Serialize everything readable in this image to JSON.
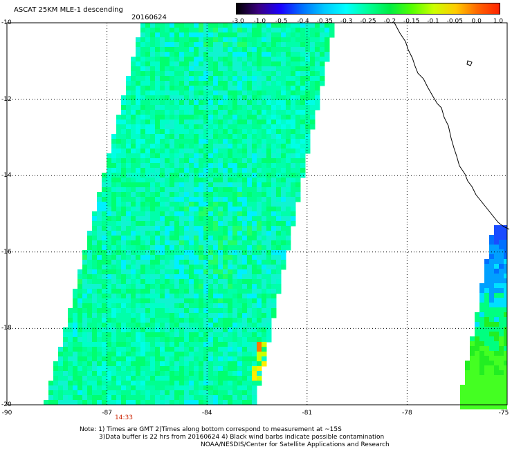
{
  "header": {
    "title": "ASCAT 25KM MLE-1 descending",
    "date": "20160624"
  },
  "colorbar": {
    "labels": [
      "-3.0",
      "-1.0",
      "-0.5",
      "-0.4",
      "-0.35",
      "-0.3",
      "-0.25",
      "-0.2",
      "-0.15",
      "-0.1",
      "-0.05",
      "0.0",
      "1.0"
    ],
    "colors": [
      "#000000",
      "#3a0080",
      "#1a00ff",
      "#0070ff",
      "#00c8ff",
      "#00ffff",
      "#00ff99",
      "#00ee44",
      "#55ff00",
      "#ccff00",
      "#ffcc00",
      "#ff6600",
      "#ff2200"
    ]
  },
  "map": {
    "lat_labels": [
      "-10",
      "-12",
      "-14",
      "-16",
      "-18",
      "-20"
    ],
    "lon_labels": [
      "-90",
      "-87",
      "-84",
      "-81",
      "-78",
      "-75"
    ],
    "lat_range": [
      -20,
      -10
    ],
    "lon_range": [
      -90,
      -75
    ],
    "time_label": "14:33",
    "swath_colors": [
      "#00ffe6",
      "#00ffc8",
      "#00ffaa",
      "#00ff90",
      "#00ff70",
      "#10f4d0",
      "#00f0ff",
      "#22ff66"
    ],
    "east_swath_colors": [
      "#1a4cff",
      "#0070ff",
      "#00a0ff",
      "#00e0ff",
      "#00ff80",
      "#22ee22",
      "#44ff22"
    ],
    "accent_colors": [
      "#ffee00",
      "#ff7700",
      "#ccff00"
    ]
  },
  "notes": {
    "line1": "Note: 1) Times are GMT 2)Times along bottom correspond to measurement at ~15S",
    "line2": "3)Data buffer is 22 hrs from 20160624 4) Black wind barbs indicate possible contamination",
    "line3": "NOAA/NESDIS/Center for Satellite Applications and Research"
  }
}
